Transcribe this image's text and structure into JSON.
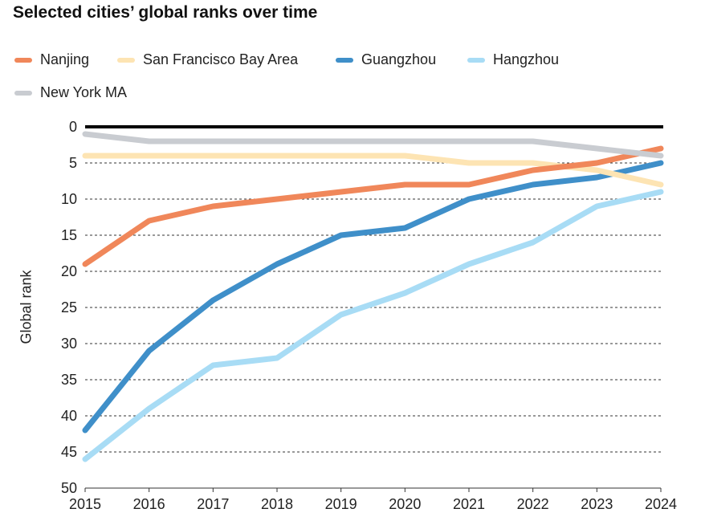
{
  "chart_data": {
    "type": "line",
    "title": "Selected cities’ global ranks over time",
    "xlabel": "",
    "ylabel": "Global rank",
    "x": [
      2015,
      2016,
      2017,
      2018,
      2019,
      2020,
      2021,
      2022,
      2023,
      2024
    ],
    "ylim": [
      0,
      50
    ],
    "y_inverted": true,
    "yticks": [
      0,
      5,
      10,
      15,
      20,
      25,
      30,
      35,
      40,
      45,
      50
    ],
    "grid": "horizontal dotted",
    "legend_position": "top",
    "series": [
      {
        "name": "Nanjing",
        "color": "#f0875a",
        "values": [
          19,
          13,
          11,
          10,
          9,
          8,
          8,
          6,
          5,
          3
        ]
      },
      {
        "name": "San Francisco Bay Area",
        "color": "#fde4b3",
        "values": [
          4,
          4,
          4,
          4,
          4,
          4,
          5,
          5,
          6,
          8
        ]
      },
      {
        "name": "Guangzhou",
        "color": "#3f8fc9",
        "values": [
          42,
          31,
          24,
          19,
          15,
          14,
          10,
          8,
          7,
          5
        ]
      },
      {
        "name": "Hangzhou",
        "color": "#a8dcf5",
        "values": [
          46,
          39,
          33,
          32,
          26,
          23,
          19,
          16,
          11,
          9
        ]
      },
      {
        "name": "New York MA",
        "color": "#c9ccd1",
        "values": [
          1,
          2,
          2,
          2,
          2,
          2,
          2,
          2,
          3,
          4
        ]
      }
    ]
  }
}
